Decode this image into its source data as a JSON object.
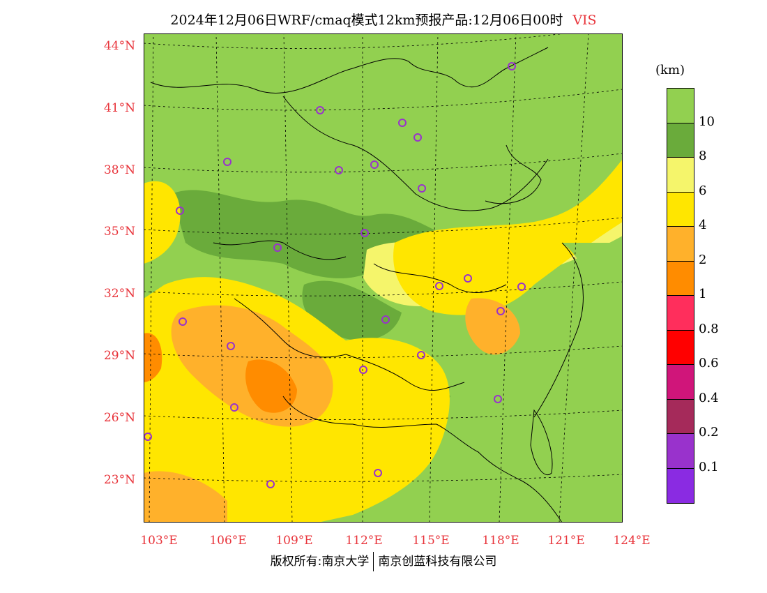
{
  "title": {
    "main": "2024年12月06日WRF/cmaq模式12km预报产品:12月06日00时",
    "variable": "VIS"
  },
  "axes": {
    "lat_labels": [
      "44°N",
      "41°N",
      "38°N",
      "35°N",
      "32°N",
      "29°N",
      "26°N",
      "23°N"
    ],
    "lon_labels": [
      "103°E",
      "106°E",
      "109°E",
      "112°E",
      "115°E",
      "118°E",
      "121°E",
      "124°E"
    ]
  },
  "legend": {
    "unit": "(km)",
    "levels": [
      "10",
      "8",
      "6",
      "4",
      "2",
      "1",
      "0.8",
      "0.6",
      "0.4",
      "0.2",
      "0.1"
    ],
    "colors": [
      "#92d050",
      "#6aab3b",
      "#f5f56b",
      "#ffe600",
      "#ffb12b",
      "#ff8c00",
      "#ff2e5c",
      "#ff0000",
      "#d0157a",
      "#a52a5a",
      "#9932cc",
      "#8a2be2"
    ]
  },
  "colors": {
    "lat_lon_labels": "#e8333a",
    "city_marker": "#9932cc"
  },
  "credit": {
    "left": "版权所有:南京大学",
    "right": "南京创蓝科技有限公司"
  }
}
